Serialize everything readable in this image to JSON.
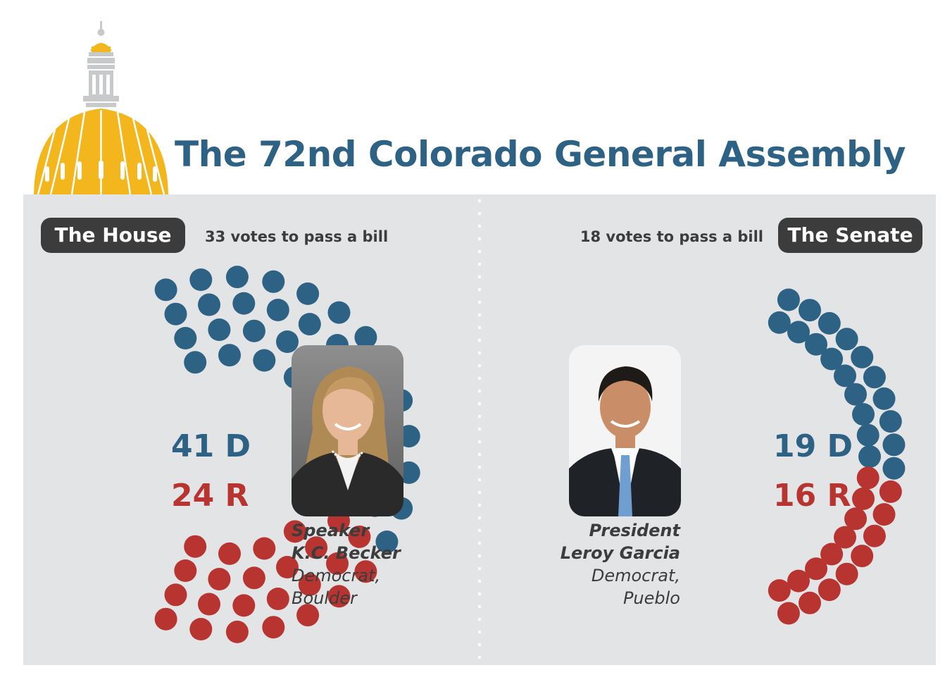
{
  "header": {
    "title": "The 72nd Colorado General Assembly",
    "dome_icon": "capitol-dome-icon"
  },
  "colors": {
    "democrat": "#2e6285",
    "republican": "#b83430",
    "panel": "#e3e4e6",
    "dome_gold": "#f3b71d",
    "dome_gray": "#c8c9cb"
  },
  "house": {
    "label": "The House",
    "votes_needed": "33 votes to pass a bill",
    "dem_seats": 41,
    "rep_seats": 24,
    "dem_label": "41 D",
    "rep_label": "24 R",
    "leader": {
      "title": "Speaker",
      "name": "K.C. Becker",
      "party": "Democrat,",
      "city": "Boulder"
    }
  },
  "senate": {
    "label": "The Senate",
    "votes_needed": "18 votes to pass a bill",
    "dem_seats": 19,
    "rep_seats": 16,
    "dem_label": "19 D",
    "rep_label": "16 R",
    "leader": {
      "title": "President",
      "name": "Leroy Garcia",
      "party": "Democrat,",
      "city": "Pueblo"
    }
  }
}
